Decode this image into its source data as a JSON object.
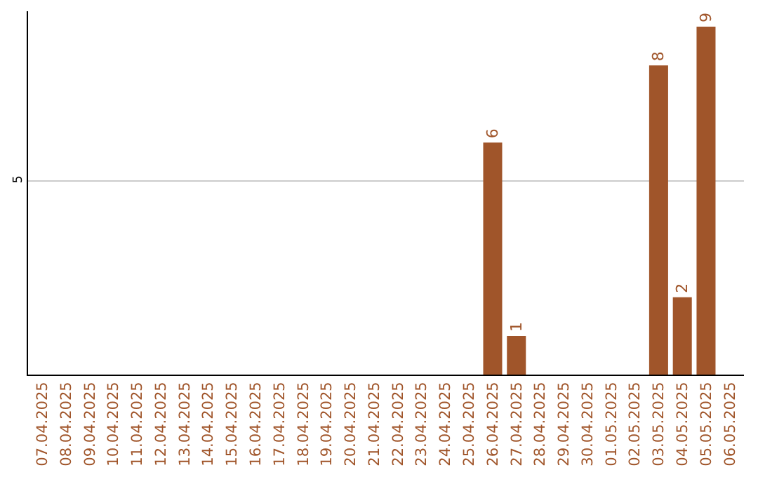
{
  "chart_data": {
    "type": "bar",
    "categories": [
      "07.04.2025",
      "08.04.2025",
      "09.04.2025",
      "10.04.2025",
      "11.04.2025",
      "12.04.2025",
      "13.04.2025",
      "14.04.2025",
      "15.04.2025",
      "16.04.2025",
      "17.04.2025",
      "18.04.2025",
      "19.04.2025",
      "20.04.2025",
      "21.04.2025",
      "22.04.2025",
      "23.04.2025",
      "24.04.2025",
      "25.04.2025",
      "26.04.2025",
      "27.04.2025",
      "28.04.2025",
      "29.04.2025",
      "30.04.2025",
      "01.05.2025",
      "02.05.2025",
      "03.05.2025",
      "04.05.2025",
      "05.05.2025",
      "06.05.2025"
    ],
    "values": [
      null,
      null,
      null,
      null,
      null,
      null,
      null,
      null,
      null,
      null,
      null,
      null,
      null,
      null,
      null,
      null,
      null,
      null,
      null,
      6,
      1,
      null,
      null,
      null,
      null,
      null,
      8,
      2,
      9,
      null
    ],
    "color": "#a0552a",
    "ylim": [
      0,
      9.4
    ],
    "yticks": [
      5
    ],
    "grid": "y",
    "data_labels": true
  }
}
